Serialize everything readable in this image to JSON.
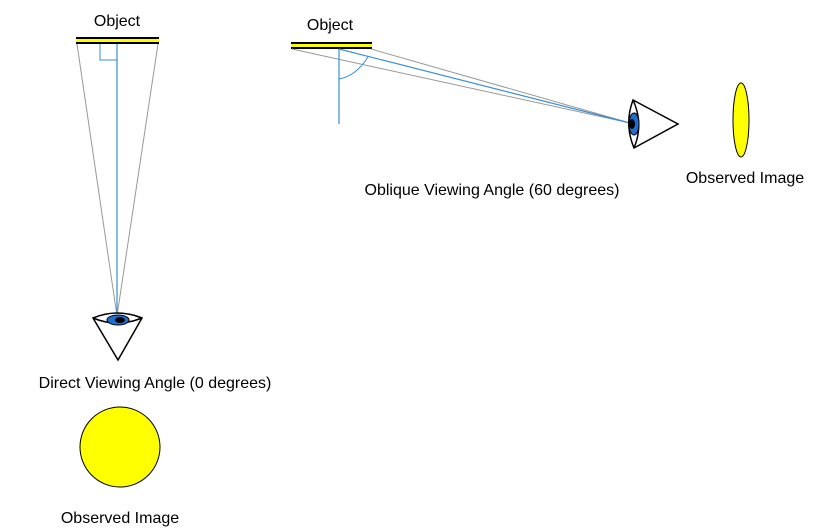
{
  "direct": {
    "object_label": "Object",
    "caption": "Direct Viewing Angle (0 degrees)",
    "image_label": "Observed Image"
  },
  "oblique": {
    "object_label": "Object",
    "caption": "Oblique Viewing Angle (60 degrees)",
    "image_label": "Observed Image"
  }
}
